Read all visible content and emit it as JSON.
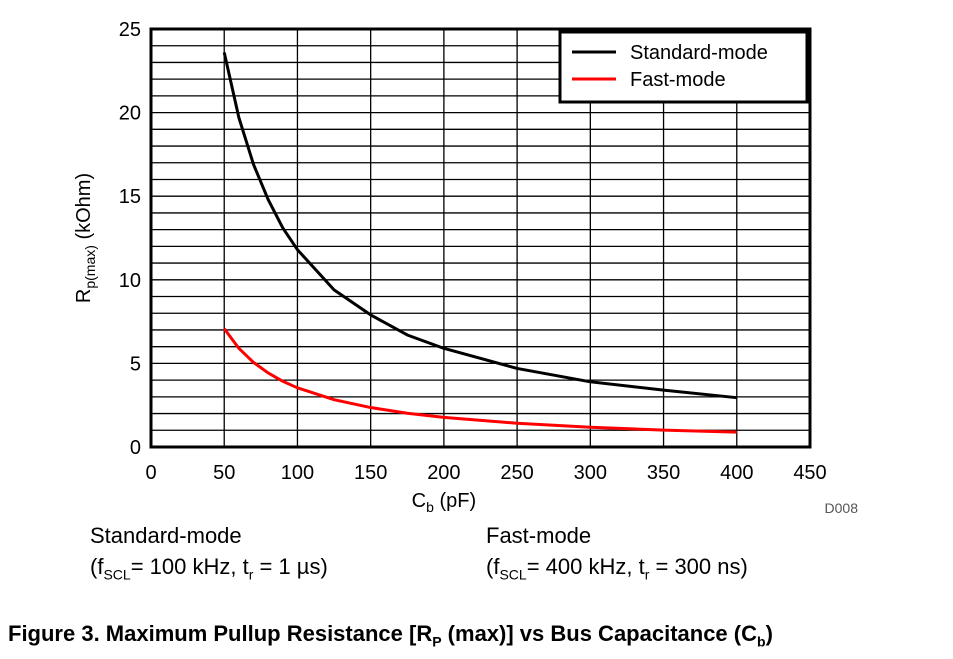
{
  "chart_data": {
    "type": "line",
    "x_axis": {
      "label_main": "C",
      "label_sub": "b",
      "label_tail": " (pF)",
      "range": [
        0,
        450
      ],
      "ticks": [
        0,
        50,
        100,
        150,
        200,
        250,
        300,
        350,
        400,
        450
      ]
    },
    "y_axis": {
      "label_main": "R",
      "label_sub": "p(max)",
      "label_tail": " (kOhm)",
      "range": [
        0,
        25
      ],
      "ticks": [
        0,
        5,
        10,
        15,
        20,
        25
      ],
      "minor_step": 1
    },
    "grid": true,
    "legend_position": "top-right",
    "series": [
      {
        "name": "Standard-mode",
        "color": "#000000",
        "x": [
          50,
          60,
          70,
          80,
          90,
          100,
          125,
          150,
          175,
          200,
          250,
          300,
          350,
          400
        ],
        "y": [
          23.6,
          19.7,
          16.9,
          14.8,
          13.1,
          11.8,
          9.4,
          7.9,
          6.7,
          5.9,
          4.7,
          3.9,
          3.4,
          2.95
        ]
      },
      {
        "name": "Fast-mode",
        "color": "#ff0000",
        "x": [
          50,
          60,
          70,
          80,
          90,
          100,
          125,
          150,
          175,
          200,
          250,
          300,
          350,
          400
        ],
        "y": [
          7.08,
          5.9,
          5.06,
          4.43,
          3.93,
          3.54,
          2.83,
          2.36,
          2.02,
          1.77,
          1.42,
          1.18,
          1.01,
          0.89
        ]
      }
    ],
    "figure_id": "D008"
  },
  "notes": {
    "standard": {
      "title": "Standard-mode",
      "params": {
        "open": "(f",
        "sub1": "SCL",
        "mid": "= 100 kHz, t",
        "sub2": "r",
        "close": " = 1 µs)"
      }
    },
    "fast": {
      "title": "Fast-mode",
      "params": {
        "open": "(f",
        "sub1": "SCL",
        "mid": "= 400 kHz, t",
        "sub2": "r",
        "close": " = 300 ns)"
      }
    }
  },
  "caption": {
    "pre": "Figure 3. Maximum Pullup Resistance [R",
    "sub1": "P",
    "mid": " (max)] vs Bus Capacitance (C",
    "sub2": "b",
    "post": ")"
  }
}
